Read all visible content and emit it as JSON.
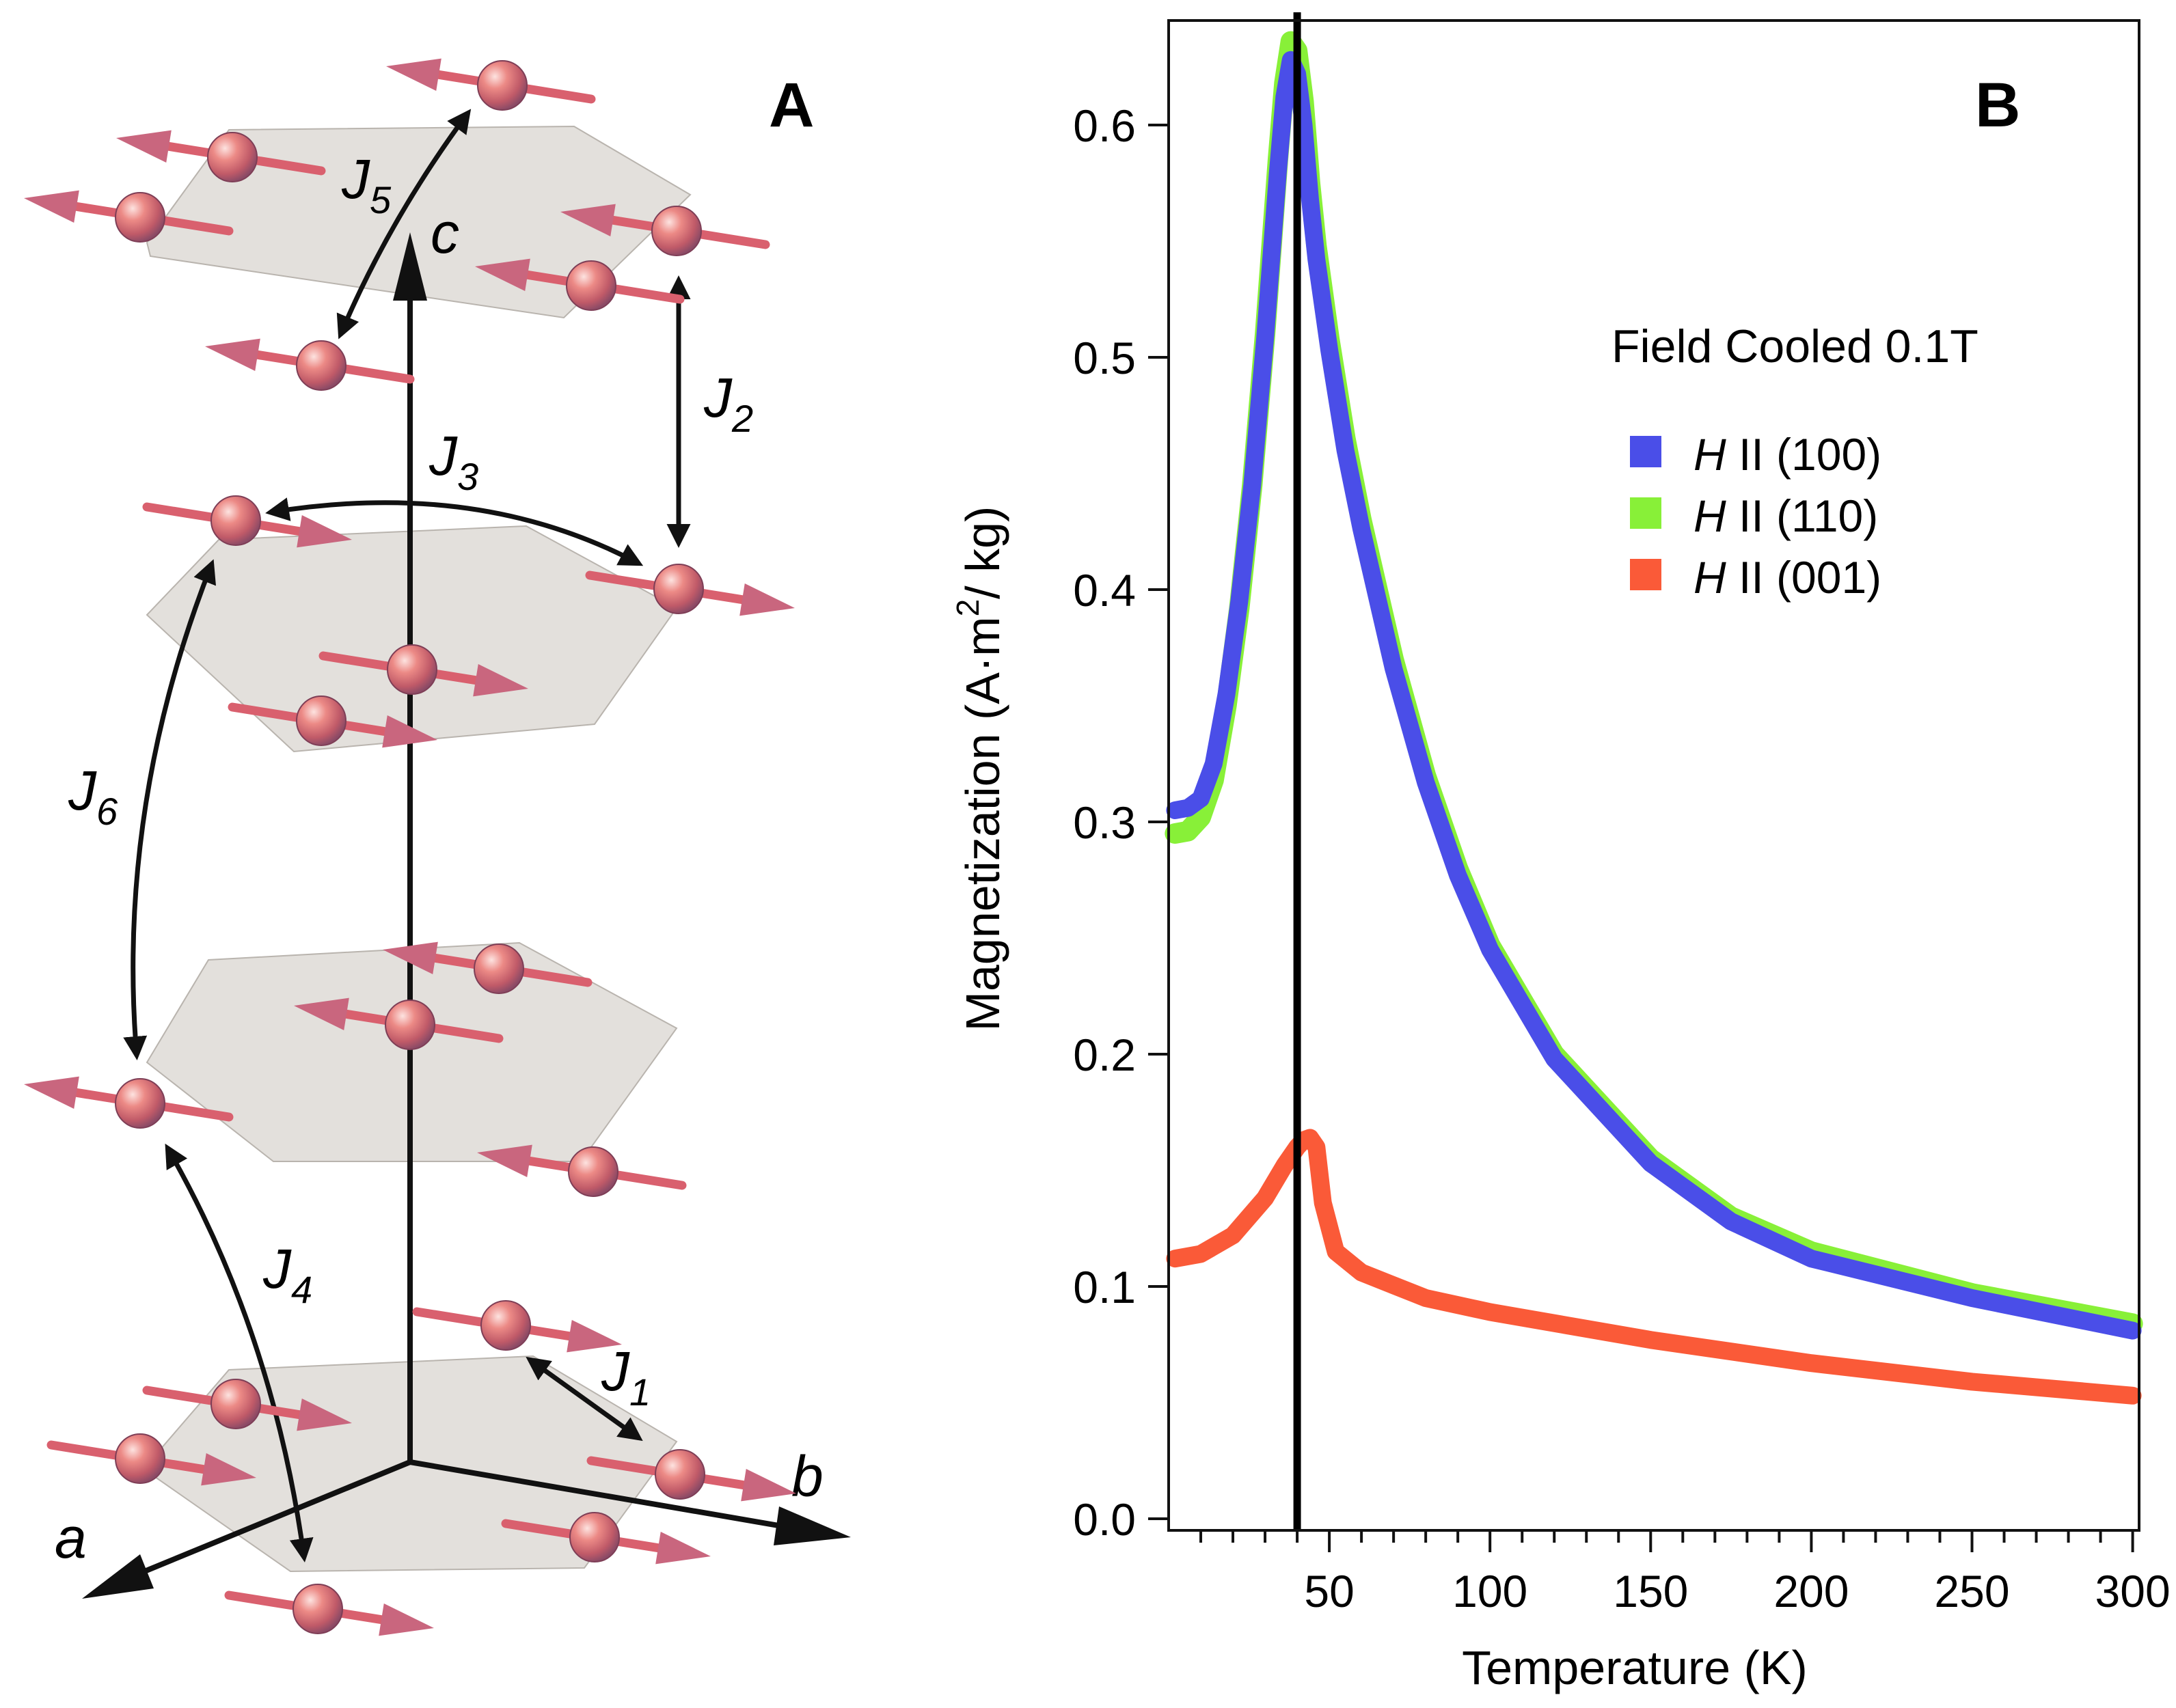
{
  "panel_a": {
    "label": "A",
    "axes": {
      "a": "a",
      "b": "b",
      "c": "c"
    },
    "couplings": [
      {
        "name": "J1",
        "symbol": "J",
        "subscript": "1"
      },
      {
        "name": "J2",
        "symbol": "J",
        "subscript": "2"
      },
      {
        "name": "J3",
        "symbol": "J",
        "subscript": "3"
      },
      {
        "name": "J4",
        "symbol": "J",
        "subscript": "4"
      },
      {
        "name": "J5",
        "symbol": "J",
        "subscript": "5"
      },
      {
        "name": "J6",
        "symbol": "J",
        "subscript": "6"
      }
    ],
    "colors": {
      "atom": "#e87a7a",
      "spin_arrow": "#d9606e",
      "plane": "#d8d4cf"
    }
  },
  "panel_b": {
    "label": "B",
    "legend_title": "Field Cooled 0.1T",
    "legend_symbol": "H",
    "legend_sep": "II"
  },
  "chart_data": {
    "type": "line",
    "title": "",
    "xlabel": "Temperature (K)",
    "ylabel_prefix": "Magnetization (A·m",
    "ylabel_sup": "2",
    "ylabel_suffix": "/ kg)",
    "xlim": [
      0,
      302
    ],
    "ylim": [
      -0.005,
      0.645
    ],
    "xticks": [
      50,
      100,
      150,
      200,
      250,
      300
    ],
    "yticks": [
      0.0,
      0.1,
      0.2,
      0.3,
      0.4,
      0.5,
      0.6
    ],
    "ytick_labels": [
      "0.0",
      "0.1",
      "0.2",
      "0.3",
      "0.4",
      "0.5",
      "0.6"
    ],
    "x_minor_step": 10,
    "vertical_line_x": 40,
    "legend_position": "top-right",
    "series": [
      {
        "name": "H II (110)",
        "direction": "(110)",
        "color": "#88f038",
        "x": [
          2,
          6,
          10,
          14,
          18,
          22,
          26,
          30,
          34,
          36,
          38,
          40,
          42,
          44,
          46,
          50,
          55,
          60,
          70,
          80,
          90,
          100,
          120,
          150,
          175,
          200,
          250,
          300
        ],
        "y": [
          0.295,
          0.296,
          0.302,
          0.318,
          0.35,
          0.392,
          0.445,
          0.51,
          0.585,
          0.618,
          0.636,
          0.632,
          0.61,
          0.575,
          0.548,
          0.508,
          0.465,
          0.43,
          0.37,
          0.32,
          0.28,
          0.247,
          0.2,
          0.155,
          0.13,
          0.115,
          0.097,
          0.084
        ]
      },
      {
        "name": "H II (100)",
        "direction": "(100)",
        "color": "#4a4ee8",
        "x": [
          2,
          6,
          10,
          14,
          18,
          22,
          26,
          30,
          34,
          36,
          38,
          40,
          42,
          44,
          46,
          50,
          55,
          60,
          70,
          80,
          90,
          100,
          120,
          150,
          175,
          200,
          250,
          300
        ],
        "y": [
          0.305,
          0.306,
          0.31,
          0.325,
          0.355,
          0.395,
          0.445,
          0.508,
          0.58,
          0.612,
          0.628,
          0.622,
          0.6,
          0.568,
          0.542,
          0.503,
          0.46,
          0.426,
          0.366,
          0.317,
          0.277,
          0.245,
          0.198,
          0.153,
          0.128,
          0.112,
          0.095,
          0.081
        ]
      },
      {
        "name": "H II (001)",
        "direction": "(001)",
        "color": "#fa5a38",
        "x": [
          2,
          10,
          20,
          30,
          36,
          40,
          42,
          44,
          46,
          48,
          52,
          60,
          80,
          100,
          150,
          200,
          250,
          300
        ],
        "y": [
          0.112,
          0.114,
          0.122,
          0.138,
          0.152,
          0.16,
          0.163,
          0.164,
          0.16,
          0.136,
          0.115,
          0.106,
          0.095,
          0.089,
          0.077,
          0.067,
          0.059,
          0.053
        ]
      }
    ]
  }
}
